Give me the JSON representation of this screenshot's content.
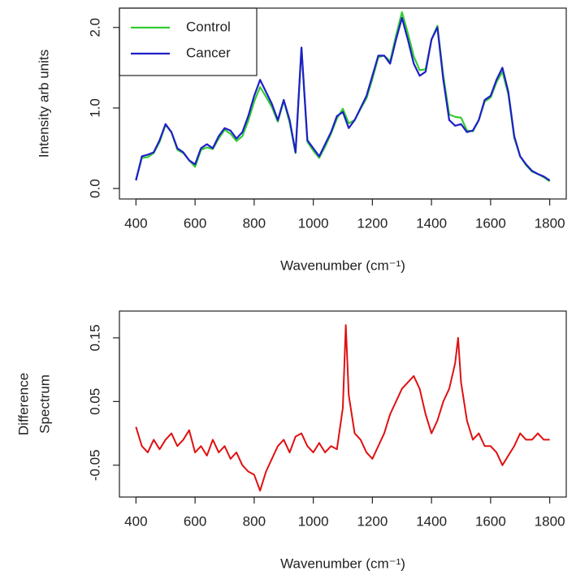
{
  "chart_data": [
    {
      "type": "line",
      "ylabel": "Intensity arb units",
      "xlabel": "Wavenumber (cm⁻¹)",
      "x": [
        400,
        420,
        440,
        460,
        480,
        500,
        520,
        540,
        560,
        580,
        600,
        620,
        640,
        660,
        680,
        700,
        720,
        740,
        760,
        780,
        800,
        820,
        840,
        860,
        880,
        900,
        920,
        940,
        960,
        980,
        1000,
        1020,
        1040,
        1060,
        1080,
        1100,
        1120,
        1140,
        1160,
        1180,
        1200,
        1220,
        1240,
        1260,
        1280,
        1300,
        1320,
        1340,
        1360,
        1380,
        1400,
        1420,
        1440,
        1460,
        1480,
        1500,
        1520,
        1540,
        1560,
        1580,
        1600,
        1620,
        1640,
        1660,
        1680,
        1700,
        1720,
        1740,
        1760,
        1780,
        1800
      ],
      "series": [
        {
          "name": "Control",
          "color": "#33cc33",
          "values": [
            0.11,
            0.38,
            0.39,
            0.44,
            0.58,
            0.79,
            0.7,
            0.48,
            0.44,
            0.35,
            0.27,
            0.48,
            0.51,
            0.49,
            0.62,
            0.73,
            0.68,
            0.59,
            0.65,
            0.84,
            1.08,
            1.26,
            1.14,
            1.01,
            0.83,
            1.09,
            0.82,
            0.44,
            1.75,
            0.58,
            0.47,
            0.38,
            0.52,
            0.68,
            0.87,
            0.99,
            0.81,
            0.85,
            0.99,
            1.12,
            1.36,
            1.63,
            1.65,
            1.58,
            1.9,
            2.19,
            1.93,
            1.64,
            1.47,
            1.48,
            1.85,
            2.02,
            1.4,
            0.92,
            0.89,
            0.88,
            0.72,
            0.71,
            0.85,
            1.08,
            1.13,
            1.32,
            1.45,
            1.17,
            0.63,
            0.4,
            0.29,
            0.21,
            0.18,
            0.14,
            0.09
          ]
        },
        {
          "name": "Cancer",
          "color": "#1f1fc8",
          "values": [
            0.1,
            0.4,
            0.42,
            0.45,
            0.6,
            0.8,
            0.7,
            0.5,
            0.45,
            0.35,
            0.3,
            0.5,
            0.55,
            0.5,
            0.65,
            0.75,
            0.72,
            0.62,
            0.7,
            0.9,
            1.15,
            1.35,
            1.2,
            1.05,
            0.85,
            1.1,
            0.85,
            0.45,
            1.75,
            0.6,
            0.5,
            0.4,
            0.55,
            0.7,
            0.9,
            0.95,
            0.75,
            0.85,
            1.0,
            1.15,
            1.4,
            1.65,
            1.65,
            1.55,
            1.85,
            2.12,
            1.85,
            1.55,
            1.4,
            1.45,
            1.85,
            2.0,
            1.35,
            0.85,
            0.78,
            0.8,
            0.7,
            0.72,
            0.85,
            1.1,
            1.15,
            1.35,
            1.5,
            1.2,
            0.65,
            0.4,
            0.3,
            0.22,
            0.18,
            0.15,
            0.1
          ]
        }
      ],
      "xlim": [
        344,
        1856
      ],
      "xticks": [
        400,
        600,
        800,
        1000,
        1200,
        1400,
        1600,
        1800
      ],
      "ylim": [
        -0.13,
        2.24
      ],
      "yticks": [
        {
          "value": 0,
          "label": "0.0"
        },
        {
          "value": 1,
          "label": "1.0"
        },
        {
          "value": 2,
          "label": "2.0"
        }
      ],
      "legend": "topleft"
    },
    {
      "type": "line",
      "ylabel": [
        "Difference",
        "Spectrum"
      ],
      "xlabel": "Wavenumber (cm⁻¹)",
      "x": [
        400,
        420,
        440,
        460,
        480,
        500,
        520,
        540,
        560,
        580,
        600,
        620,
        640,
        660,
        680,
        700,
        720,
        740,
        760,
        780,
        800,
        820,
        840,
        860,
        880,
        900,
        920,
        940,
        960,
        980,
        1000,
        1020,
        1040,
        1060,
        1080,
        1100,
        1110,
        1120,
        1140,
        1160,
        1180,
        1200,
        1220,
        1240,
        1260,
        1280,
        1300,
        1320,
        1340,
        1360,
        1380,
        1400,
        1420,
        1440,
        1460,
        1480,
        1490,
        1500,
        1520,
        1540,
        1560,
        1580,
        1600,
        1620,
        1640,
        1660,
        1680,
        1700,
        1720,
        1740,
        1760,
        1780,
        1800
      ],
      "color": "#e01010",
      "values": [
        0.01,
        -0.02,
        -0.03,
        -0.01,
        -0.025,
        -0.01,
        0.0,
        -0.02,
        -0.01,
        0.005,
        -0.03,
        -0.02,
        -0.035,
        -0.01,
        -0.03,
        -0.02,
        -0.04,
        -0.03,
        -0.05,
        -0.06,
        -0.065,
        -0.09,
        -0.06,
        -0.04,
        -0.02,
        -0.01,
        -0.03,
        -0.005,
        0.0,
        -0.02,
        -0.03,
        -0.015,
        -0.03,
        -0.02,
        -0.025,
        0.04,
        0.17,
        0.06,
        0.0,
        -0.01,
        -0.03,
        -0.04,
        -0.02,
        0.0,
        0.03,
        0.05,
        0.07,
        0.08,
        0.09,
        0.07,
        0.03,
        0.0,
        0.02,
        0.05,
        0.07,
        0.11,
        0.15,
        0.08,
        0.02,
        -0.01,
        0.0,
        -0.02,
        -0.02,
        -0.03,
        -0.05,
        -0.035,
        -0.02,
        0.0,
        -0.01,
        -0.01,
        0.0,
        -0.01,
        -0.01
      ],
      "xlim": [
        344,
        1856
      ],
      "xticks": [
        400,
        600,
        800,
        1000,
        1200,
        1400,
        1600,
        1800
      ],
      "ylim": [
        -0.1,
        0.192
      ],
      "yticks": [
        -0.05,
        0.05,
        0.15
      ]
    }
  ]
}
